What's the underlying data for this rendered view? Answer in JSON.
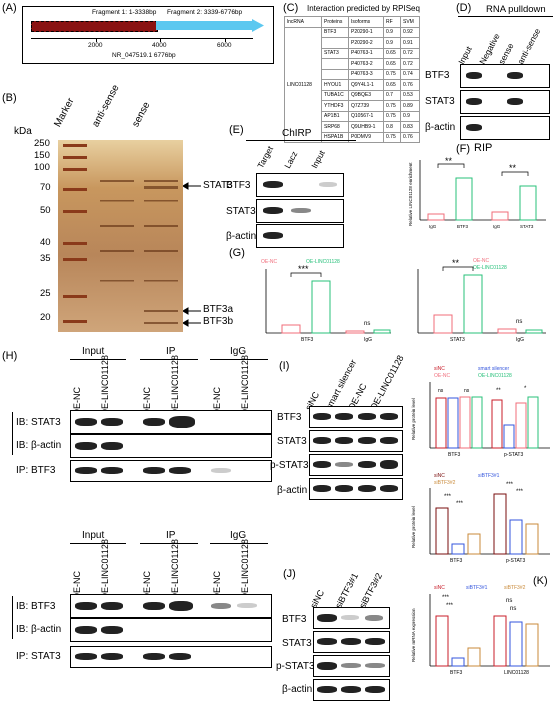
{
  "panels": {
    "A": "(A)",
    "B": "(B)",
    "C": "(C)",
    "D": "(D)",
    "E": "(E)",
    "F": "(F)",
    "G": "(G)",
    "H": "(H)",
    "I": "(I)",
    "J": "(J)",
    "K": "(K)"
  },
  "panelA": {
    "fragment1": "Fragment 1: 1-3338bp",
    "fragment2": "Fragment 2: 3339-6776bp",
    "ticks": [
      "2000",
      "4000",
      "6000"
    ],
    "transcript": "NR_047519.1  6776bp"
  },
  "panelB": {
    "unit": "kDa",
    "lanes": [
      "Marker",
      "anti-sense",
      "sense"
    ],
    "markers": [
      "250",
      "150",
      "100",
      "70",
      "50",
      "40",
      "35",
      "25",
      "20"
    ],
    "annotations": [
      "STAT3",
      "BTF3a",
      "BTF3b"
    ]
  },
  "panelC": {
    "title": "Interaction predicted by RPISeq",
    "headers": [
      "lncRNA",
      "Proteins",
      "Isoforms",
      "RF",
      "SVM"
    ],
    "lncrna": "LINC01128",
    "rows": [
      [
        "BTF3",
        "P20290-1",
        "0.9",
        "0.92"
      ],
      [
        "",
        "P20290-2",
        "0.9",
        "0.91"
      ],
      [
        "STAT3",
        "P40763-1",
        "0.65",
        "0.72"
      ],
      [
        "",
        "P40763-2",
        "0.65",
        "0.72"
      ],
      [
        "",
        "P40763-3",
        "0.75",
        "0.74"
      ],
      [
        "HYOU1",
        "Q9Y4L1-1",
        "0.65",
        "0.76"
      ],
      [
        "TUBA1C",
        "Q9BQE3",
        "0.7",
        "0.53"
      ],
      [
        "YTHDF3",
        "Q7Z739",
        "0.75",
        "0.89"
      ],
      [
        "AP1B1",
        "Q10567-1",
        "0.75",
        "0.9"
      ],
      [
        "SRP68",
        "Q9UHB9-1",
        "0.8",
        "0.83"
      ],
      [
        "HSPA1B",
        "P0DMV9",
        "0.75",
        "0.76"
      ]
    ]
  },
  "panelD": {
    "title": "RNA pulldown",
    "lanes": [
      "Input",
      "Negative",
      "sense",
      "anti-sense"
    ],
    "rows": [
      "BTF3",
      "STAT3",
      "β-actin"
    ]
  },
  "panelE": {
    "title": "ChIRP",
    "lanes": [
      "Target",
      "Lacz",
      "Input"
    ],
    "rows": [
      "BTF3",
      "STAT3",
      "β-actin"
    ]
  },
  "panelF": {
    "title": "RIP",
    "ylabel": "Relative LINC01128 enrichment",
    "sig": [
      "**",
      "**"
    ],
    "categories": [
      "IgG",
      "BTF3",
      "IgG",
      "STAT3"
    ]
  },
  "panelG": {
    "ylabel": "Relative LINC01128 enrichment",
    "legend": [
      "OE-NC",
      "OE-LINC01128"
    ],
    "left": {
      "sig": [
        "***",
        "ns"
      ],
      "categories": [
        "BTF3",
        "IgG"
      ]
    },
    "right": {
      "sig": [
        "**",
        "ns"
      ],
      "categories": [
        "STAT3",
        "IgG"
      ]
    }
  },
  "panelH": {
    "top": {
      "groups": [
        "Input",
        "IP",
        "IgG"
      ],
      "lanes": [
        "OE-NC",
        "OE-LINC01128",
        "OE-NC",
        "OE-LINC01128",
        "OE-NC",
        "OE-LINC01128"
      ],
      "rows": [
        "IB: STAT3",
        "IB: β-actin",
        "IP: BTF3"
      ]
    },
    "bottom": {
      "groups": [
        "Input",
        "IP",
        "IgG"
      ],
      "lanes": [
        "OE-NC",
        "OE-LINC01128",
        "OE-NC",
        "OE-LINC01128",
        "OE-NC",
        "OE-LINC01128"
      ],
      "rows": [
        "IB: BTF3",
        "IB: β-actin",
        "IP: STAT3"
      ]
    }
  },
  "panelI": {
    "lanes": [
      "siNC",
      "smart silencer",
      "OE-NC",
      "OE-LINC01128"
    ],
    "rows": [
      "BTF3",
      "STAT3",
      "p-STAT3",
      "β-actin"
    ],
    "legend": [
      "siNC",
      "smart silencer",
      "OE-NC",
      "OE-LINC01128"
    ],
    "ylabel": "Relative protein level",
    "categories": [
      "BTF3",
      "p-STAT3"
    ],
    "sig": [
      "ns",
      "ns",
      "**",
      "*"
    ]
  },
  "panelJ": {
    "lanes": [
      "siNC",
      "siBTF3#1",
      "siBTF3#2"
    ],
    "rows": [
      "BTF3",
      "STAT3",
      "p-STAT3",
      "β-actin"
    ],
    "legend": [
      "siNC",
      "siBTF3#1",
      "siBTF3#2"
    ],
    "ylabel": "Relative protein level",
    "categories": [
      "BTF3",
      "p-STAT3"
    ],
    "sig": [
      "***",
      "***",
      "***",
      "***"
    ]
  },
  "panelK": {
    "legend": [
      "siNC",
      "siBTF3#1",
      "siBTF3#2"
    ],
    "ylabel": "Relative mRNA expression",
    "categories": [
      "BTF3",
      "LINC01128"
    ],
    "sig": [
      "***",
      "***",
      "ns",
      "ns"
    ]
  },
  "colors": {
    "pink": "#f06c7a",
    "green": "#27c07a",
    "blue": "#3355dd",
    "red": "#c81e2a",
    "darkred": "#7a0d0d",
    "cyan": "#3bb6e6",
    "tan": "#c98a3a"
  }
}
